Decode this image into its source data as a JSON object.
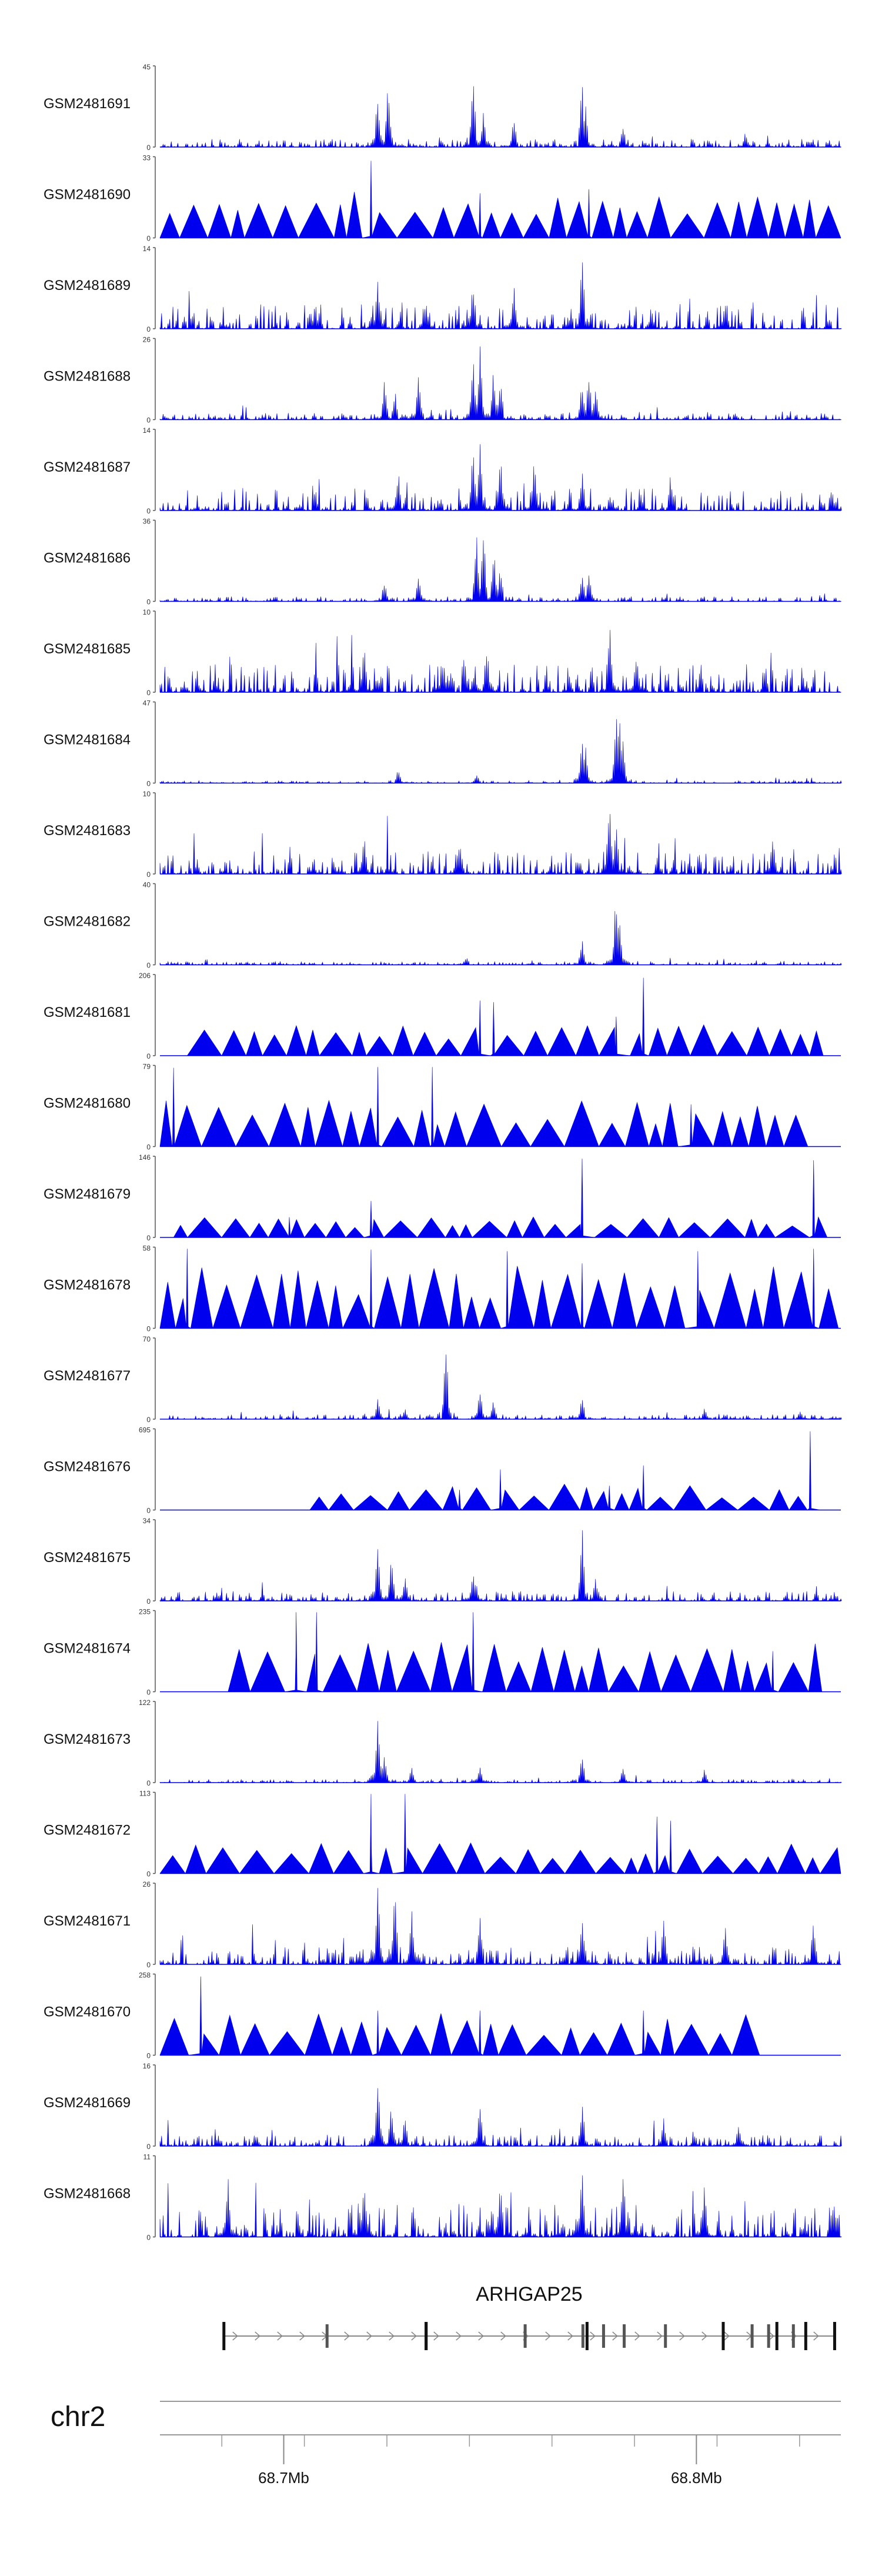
{
  "chart_data": {
    "type": "area",
    "title": "",
    "xlabel": "",
    "ylabel": "",
    "color": "#0000ee",
    "xlim": [
      68.67,
      68.835
    ],
    "units": "Mb",
    "tracks": [
      {
        "label": "GSM2481691",
        "ymax": "45",
        "style": "dense",
        "noise": 0.1,
        "peaks": [
          [
            0.32,
            0.72
          ],
          [
            0.335,
            0.82
          ],
          [
            0.46,
            0.97
          ],
          [
            0.475,
            0.45
          ],
          [
            0.52,
            0.4
          ],
          [
            0.62,
            0.85
          ],
          [
            0.625,
            0.55
          ],
          [
            0.68,
            0.3
          ],
          [
            0.86,
            0.2
          ]
        ]
      },
      {
        "label": "GSM2481690",
        "ymax": "33",
        "style": "triangles",
        "noise": 0.45,
        "peaks": [
          [
            0.31,
            0.95
          ],
          [
            0.47,
            0.55
          ],
          [
            0.63,
            0.6
          ]
        ]
      },
      {
        "label": "GSM2481689",
        "ymax": "14",
        "style": "dense",
        "noise": 0.3,
        "peaks": [
          [
            0.32,
            0.65
          ],
          [
            0.46,
            0.6
          ],
          [
            0.52,
            0.55
          ],
          [
            0.62,
            0.95
          ],
          [
            0.83,
            0.4
          ]
        ]
      },
      {
        "label": "GSM2481688",
        "ymax": "26",
        "style": "dense",
        "noise": 0.08,
        "peaks": [
          [
            0.33,
            0.55
          ],
          [
            0.345,
            0.4
          ],
          [
            0.38,
            0.65
          ],
          [
            0.46,
            0.85
          ],
          [
            0.47,
            0.98
          ],
          [
            0.49,
            0.7
          ],
          [
            0.5,
            0.6
          ],
          [
            0.62,
            0.5
          ],
          [
            0.63,
            0.65
          ],
          [
            0.64,
            0.45
          ]
        ]
      },
      {
        "label": "GSM2481687",
        "ymax": "14",
        "style": "dense",
        "noise": 0.28,
        "peaks": [
          [
            0.35,
            0.55
          ],
          [
            0.46,
            0.85
          ],
          [
            0.47,
            0.98
          ],
          [
            0.5,
            0.75
          ],
          [
            0.55,
            0.7
          ],
          [
            0.62,
            0.55
          ],
          [
            0.75,
            0.5
          ]
        ]
      },
      {
        "label": "GSM2481686",
        "ymax": "36",
        "style": "dense",
        "noise": 0.06,
        "peaks": [
          [
            0.33,
            0.3
          ],
          [
            0.38,
            0.35
          ],
          [
            0.465,
            0.9
          ],
          [
            0.475,
            0.98
          ],
          [
            0.49,
            0.7
          ],
          [
            0.5,
            0.5
          ],
          [
            0.62,
            0.35
          ],
          [
            0.63,
            0.45
          ]
        ]
      },
      {
        "label": "GSM2481685",
        "ymax": "10",
        "style": "dense",
        "noise": 0.35,
        "peaks": [
          [
            0.3,
            0.6
          ],
          [
            0.48,
            0.65
          ],
          [
            0.66,
            0.98
          ],
          [
            0.7,
            0.6
          ]
        ]
      },
      {
        "label": "GSM2481684",
        "ymax": "47",
        "style": "dense",
        "noise": 0.03,
        "peaks": [
          [
            0.35,
            0.18
          ],
          [
            0.465,
            0.12
          ],
          [
            0.62,
            0.55
          ],
          [
            0.625,
            0.5
          ],
          [
            0.67,
            0.95
          ],
          [
            0.675,
            0.98
          ],
          [
            0.68,
            0.6
          ]
        ]
      },
      {
        "label": "GSM2481683",
        "ymax": "10",
        "style": "dense",
        "noise": 0.28,
        "peaks": [
          [
            0.3,
            0.55
          ],
          [
            0.44,
            0.5
          ],
          [
            0.66,
            0.98
          ],
          [
            0.67,
            0.7
          ],
          [
            0.9,
            0.5
          ]
        ]
      },
      {
        "label": "GSM2481682",
        "ymax": "40",
        "style": "dense",
        "noise": 0.04,
        "peaks": [
          [
            0.45,
            0.12
          ],
          [
            0.62,
            0.35
          ],
          [
            0.67,
            0.97
          ],
          [
            0.675,
            0.6
          ]
        ]
      },
      {
        "label": "GSM2481681",
        "ymax": "206",
        "style": "triangles",
        "noise": 0.3,
        "x_start": 0.04,
        "x_end": 0.99,
        "peaks": [
          [
            0.47,
            0.68
          ],
          [
            0.49,
            0.66
          ],
          [
            0.67,
            0.48
          ],
          [
            0.71,
            0.96
          ]
        ]
      },
      {
        "label": "GSM2481680",
        "ymax": "79",
        "style": "triangles",
        "noise": 0.45,
        "x_start": 0.0,
        "x_end": 0.97,
        "peaks": [
          [
            0.02,
            0.97
          ],
          [
            0.32,
            0.98
          ],
          [
            0.4,
            0.98
          ],
          [
            0.78,
            0.52
          ]
        ]
      },
      {
        "label": "GSM2481679",
        "ymax": "146",
        "style": "triangles",
        "noise": 0.2,
        "x_start": 0.02,
        "x_end": 0.99,
        "peaks": [
          [
            0.19,
            0.25
          ],
          [
            0.31,
            0.45
          ],
          [
            0.62,
            0.97
          ],
          [
            0.96,
            0.95
          ]
        ]
      },
      {
        "label": "GSM2481678",
        "ymax": "58",
        "style": "triangles",
        "noise": 0.6,
        "x_start": 0.0,
        "x_end": 1.0,
        "peaks": [
          [
            0.04,
            0.98
          ],
          [
            0.31,
            0.97
          ],
          [
            0.51,
            0.95
          ],
          [
            0.62,
            0.8
          ],
          [
            0.79,
            0.95
          ],
          [
            0.96,
            0.98
          ]
        ]
      },
      {
        "label": "GSM2481677",
        "ymax": "70",
        "style": "dense",
        "noise": 0.06,
        "peaks": [
          [
            0.32,
            0.3
          ],
          [
            0.36,
            0.15
          ],
          [
            0.42,
            0.98
          ],
          [
            0.47,
            0.4
          ],
          [
            0.49,
            0.25
          ],
          [
            0.62,
            0.3
          ],
          [
            0.8,
            0.15
          ],
          [
            0.94,
            0.12
          ]
        ]
      },
      {
        "label": "GSM2481676",
        "ymax": "695",
        "style": "triangles",
        "noise": 0.25,
        "x_start": 0.22,
        "x_end": 0.97,
        "peaks": [
          [
            0.44,
            0.25
          ],
          [
            0.5,
            0.5
          ],
          [
            0.66,
            0.3
          ],
          [
            0.71,
            0.55
          ],
          [
            0.955,
            0.97
          ]
        ]
      },
      {
        "label": "GSM2481675",
        "ymax": "34",
        "style": "dense",
        "noise": 0.12,
        "peaks": [
          [
            0.32,
            0.82
          ],
          [
            0.34,
            0.6
          ],
          [
            0.36,
            0.35
          ],
          [
            0.46,
            0.4
          ],
          [
            0.62,
            0.97
          ],
          [
            0.64,
            0.3
          ]
        ]
      },
      {
        "label": "GSM2481674",
        "ymax": "235",
        "style": "triangles",
        "noise": 0.5,
        "x_start": 0.1,
        "x_end": 0.98,
        "peaks": [
          [
            0.2,
            0.98
          ],
          [
            0.23,
            0.98
          ],
          [
            0.46,
            0.98
          ],
          [
            0.9,
            0.5
          ]
        ]
      },
      {
        "label": "GSM2481673",
        "ymax": "122",
        "style": "dense",
        "noise": 0.04,
        "peaks": [
          [
            0.32,
            0.95
          ],
          [
            0.33,
            0.4
          ],
          [
            0.37,
            0.22
          ],
          [
            0.47,
            0.25
          ],
          [
            0.62,
            0.35
          ],
          [
            0.68,
            0.2
          ],
          [
            0.8,
            0.18
          ]
        ]
      },
      {
        "label": "GSM2481672",
        "ymax": "113",
        "style": "triangles",
        "noise": 0.3,
        "x_start": 0.0,
        "x_end": 1.0,
        "peaks": [
          [
            0.31,
            0.98
          ],
          [
            0.36,
            0.98
          ],
          [
            0.73,
            0.7
          ],
          [
            0.75,
            0.65
          ]
        ]
      },
      {
        "label": "GSM2481671",
        "ymax": "26",
        "style": "dense",
        "noise": 0.22,
        "peaks": [
          [
            0.32,
            0.98
          ],
          [
            0.345,
            0.95
          ],
          [
            0.37,
            0.7
          ],
          [
            0.47,
            0.7
          ],
          [
            0.62,
            0.65
          ],
          [
            0.74,
            0.6
          ],
          [
            0.83,
            0.55
          ],
          [
            0.96,
            0.6
          ]
        ]
      },
      {
        "label": "GSM2481670",
        "ymax": "258",
        "style": "triangles",
        "noise": 0.4,
        "x_start": 0.0,
        "x_end": 0.89,
        "peaks": [
          [
            0.06,
            0.97
          ],
          [
            0.32,
            0.55
          ],
          [
            0.47,
            0.55
          ],
          [
            0.71,
            0.55
          ]
        ]
      },
      {
        "label": "GSM2481669",
        "ymax": "16",
        "style": "dense",
        "noise": 0.14,
        "peaks": [
          [
            0.32,
            0.98
          ],
          [
            0.34,
            0.55
          ],
          [
            0.36,
            0.4
          ],
          [
            0.47,
            0.55
          ],
          [
            0.62,
            0.6
          ],
          [
            0.74,
            0.35
          ],
          [
            0.85,
            0.3
          ]
        ]
      },
      {
        "label": "GSM2481668",
        "ymax": "11",
        "style": "dense",
        "noise": 0.4,
        "peaks": [
          [
            0.1,
            0.75
          ],
          [
            0.3,
            0.7
          ],
          [
            0.5,
            0.8
          ],
          [
            0.62,
            0.9
          ],
          [
            0.68,
            0.95
          ],
          [
            0.8,
            0.7
          ]
        ]
      }
    ],
    "gene": {
      "name": "ARHGAP25",
      "start": 68.6855,
      "end": 68.8335,
      "strand": "+",
      "exons": [
        68.6855,
        68.7105,
        68.7345,
        68.7345,
        68.7585,
        68.7725,
        68.7735,
        68.7775,
        68.7825,
        68.7925,
        68.8065,
        68.8135,
        68.8175,
        68.8195,
        68.8235,
        68.8265,
        68.8335
      ],
      "tall_exons": [
        68.6855,
        68.7345,
        68.7735,
        68.8065,
        68.8195,
        68.8265,
        68.8335
      ]
    },
    "chromosome": "chr2",
    "axis": {
      "ticks": [
        68.685,
        68.705,
        68.725,
        68.745,
        68.765,
        68.785,
        68.805,
        68.825
      ],
      "major_ticks": [
        68.7,
        68.8
      ],
      "major_labels": [
        "68.7Mb",
        "68.8Mb"
      ]
    }
  }
}
